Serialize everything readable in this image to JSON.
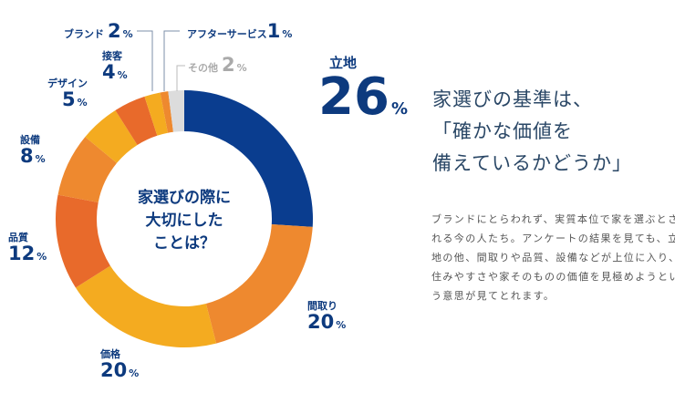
{
  "chart_data": {
    "type": "pie",
    "donut": true,
    "center_text": "家選びの際に\n大切にした\nことは？",
    "unit": "%",
    "slices": [
      {
        "label": "立地",
        "value": 26,
        "color": "#0a3d8f"
      },
      {
        "label": "間取り",
        "value": 20,
        "color": "#ee892f"
      },
      {
        "label": "価格",
        "value": 20,
        "color": "#f4ab20"
      },
      {
        "label": "品質",
        "value": 12,
        "color": "#e86a2b"
      },
      {
        "label": "設備",
        "value": 8,
        "color": "#ee892f"
      },
      {
        "label": "デザイン",
        "value": 5,
        "color": "#f4ab20"
      },
      {
        "label": "接客",
        "value": 4,
        "color": "#e86a2b"
      },
      {
        "label": "ブランド",
        "value": 2,
        "color": "#f4ab20"
      },
      {
        "label": "アフターサービス",
        "value": 1,
        "color": "#ee892f"
      },
      {
        "label": "その他",
        "value": 2,
        "color": "#dcdcdc"
      }
    ]
  },
  "headline": "家選びの基準は、\n「確かな価値を\n備えているかどうか」",
  "body_text": "ブランドにとらわれず、実質本位で家を選ぶとされる今の人たち。アンケートの結果を見ても、立地の他、間取りや品質、設備などが上位に入り、住みやすさや家そのものの価値を見極めようという意思が見てとれます。"
}
